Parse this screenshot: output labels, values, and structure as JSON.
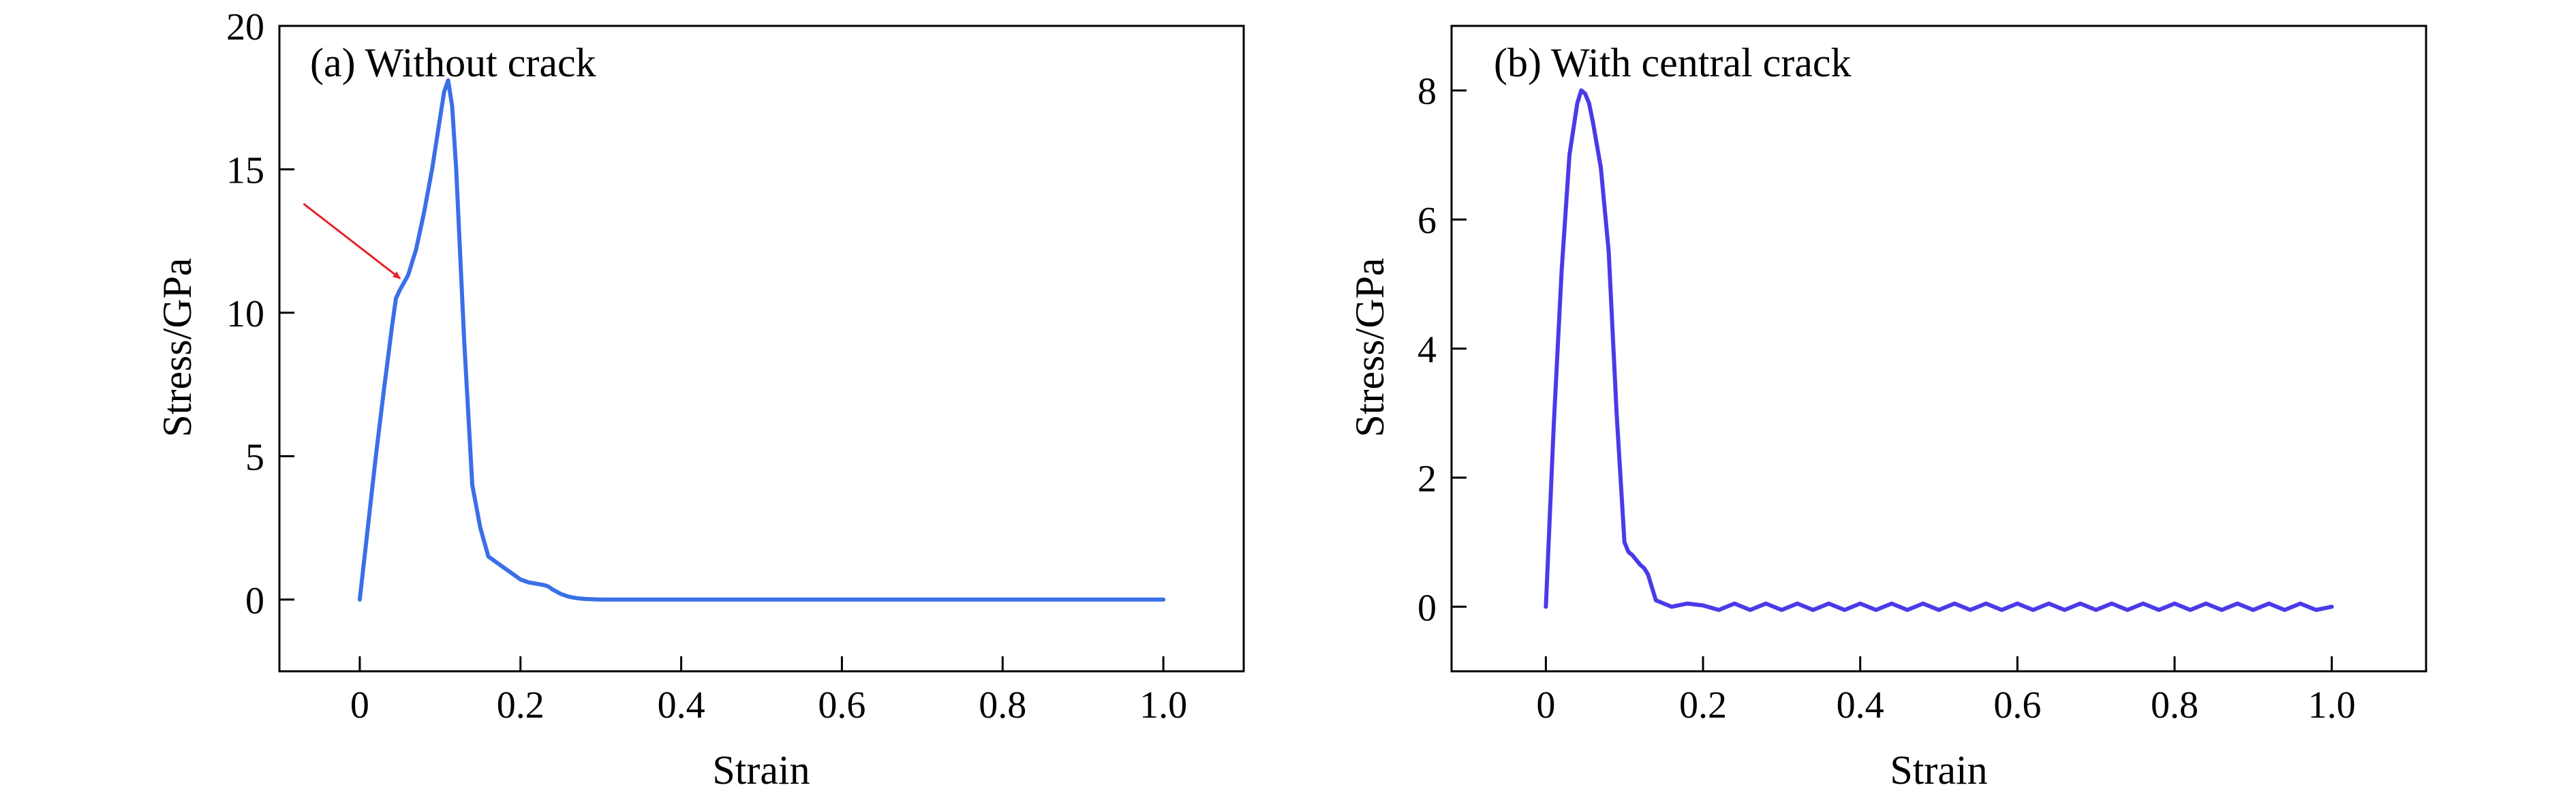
{
  "colors": {
    "axis": "#000000",
    "annotation": "#e8202a"
  },
  "chart_data": [
    {
      "type": "line",
      "title": "(a) Without crack",
      "xlabel": "Strain",
      "ylabel": "Stress/GPa",
      "xlim": [
        -0.1,
        1.1
      ],
      "ylim": [
        -2.5,
        20
      ],
      "xticks": [
        0,
        0.2,
        0.4,
        0.6,
        0.8,
        1.0
      ],
      "xtick_labels": [
        "0",
        "0.2",
        "0.4",
        "0.6",
        "0.8",
        "1.0"
      ],
      "yticks": [
        0,
        5,
        10,
        15,
        20
      ],
      "ytick_labels": [
        "0",
        "5",
        "10",
        "15",
        "20"
      ],
      "grid": false,
      "legend": "none",
      "annotations": [
        {
          "type": "arrow",
          "from": [
            -0.07,
            13.8
          ],
          "to": [
            0.05,
            11.2
          ],
          "color": "#e8202a"
        }
      ],
      "series": [
        {
          "color": "#3a6fe8",
          "x": [
            0,
            0.01,
            0.02,
            0.03,
            0.04,
            0.045,
            0.05,
            0.06,
            0.07,
            0.08,
            0.09,
            0.1,
            0.105,
            0.11,
            0.115,
            0.12,
            0.13,
            0.14,
            0.15,
            0.16,
            0.17,
            0.18,
            0.19,
            0.2,
            0.21,
            0.22,
            0.23,
            0.235,
            0.24,
            0.25,
            0.26,
            0.27,
            0.28,
            0.3,
            0.35,
            0.4,
            0.5,
            0.6,
            0.7,
            0.8,
            0.9,
            1.0
          ],
          "y": [
            0,
            2.5,
            5,
            7.3,
            9.5,
            10.5,
            10.8,
            11.3,
            12.2,
            13.5,
            15,
            16.8,
            17.7,
            18.1,
            17.2,
            15,
            9,
            4,
            2.5,
            1.5,
            1.3,
            1.1,
            0.9,
            0.7,
            0.6,
            0.55,
            0.5,
            0.45,
            0.35,
            0.2,
            0.1,
            0.05,
            0.02,
            0,
            0,
            0,
            0,
            0,
            0,
            0,
            0,
            0
          ]
        }
      ]
    },
    {
      "type": "line",
      "title": "(b) With central crack",
      "xlabel": "Strain",
      "ylabel": "Stress/GPa",
      "xlim": [
        -0.12,
        1.12
      ],
      "ylim": [
        -1,
        9
      ],
      "xticks": [
        0,
        0.2,
        0.4,
        0.6,
        0.8,
        1.0
      ],
      "xtick_labels": [
        "0",
        "0.2",
        "0.4",
        "0.6",
        "0.8",
        "1.0"
      ],
      "yticks": [
        0,
        2,
        4,
        6,
        8
      ],
      "ytick_labels": [
        "0",
        "2",
        "4",
        "6",
        "8"
      ],
      "grid": false,
      "legend": "none",
      "series": [
        {
          "color": "#4a3ae8",
          "x": [
            0,
            0.01,
            0.02,
            0.03,
            0.04,
            0.045,
            0.05,
            0.055,
            0.06,
            0.07,
            0.08,
            0.09,
            0.1,
            0.105,
            0.11,
            0.12,
            0.125,
            0.13,
            0.14,
            0.15,
            0.16,
            0.18,
            0.2,
            0.22,
            0.24,
            0.26,
            0.28,
            0.3,
            0.32,
            0.34,
            0.36,
            0.38,
            0.4,
            0.42,
            0.44,
            0.46,
            0.48,
            0.5,
            0.52,
            0.54,
            0.56,
            0.58,
            0.6,
            0.62,
            0.64,
            0.66,
            0.68,
            0.7,
            0.72,
            0.74,
            0.76,
            0.78,
            0.8,
            0.82,
            0.84,
            0.86,
            0.88,
            0.9,
            0.92,
            0.94,
            0.96,
            0.98,
            1.0
          ],
          "y": [
            0,
            2.8,
            5.2,
            7,
            7.8,
            8,
            7.95,
            7.8,
            7.5,
            6.8,
            5.5,
            3,
            1,
            0.85,
            0.8,
            0.65,
            0.6,
            0.5,
            0.1,
            0.05,
            0,
            0.05,
            0.02,
            -0.05,
            0.05,
            -0.05,
            0.05,
            -0.05,
            0.05,
            -0.05,
            0.05,
            -0.05,
            0.05,
            -0.05,
            0.05,
            -0.05,
            0.05,
            -0.05,
            0.05,
            -0.05,
            0.05,
            -0.05,
            0.05,
            -0.05,
            0.05,
            -0.05,
            0.05,
            -0.05,
            0.05,
            -0.05,
            0.05,
            -0.05,
            0.05,
            -0.05,
            0.05,
            -0.05,
            0.05,
            -0.05,
            0.05,
            -0.05,
            0.05,
            -0.05,
            0
          ]
        }
      ]
    }
  ]
}
